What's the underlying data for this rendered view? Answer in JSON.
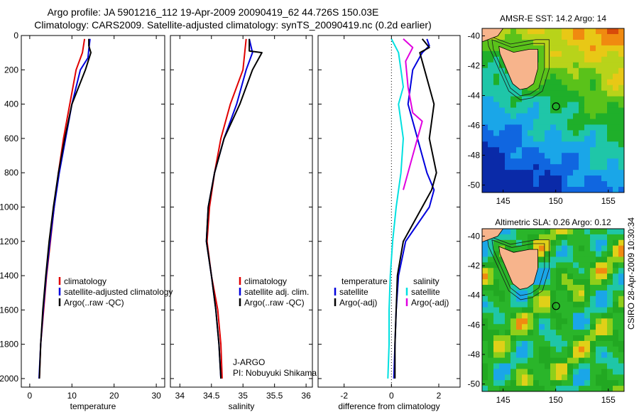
{
  "figure": {
    "title_line1": "Argo profile: JA 5901216_112 19-Apr-2009 20090419_62 44.726S 150.03E",
    "title_line2": "Climatology: CARS2009. Satellite-adjusted climatology: synTS_20090419.nc (0.2d earlier)",
    "footer_note": "CSIRO 28-Apr-2009 10:30:34"
  },
  "chart_data": [
    {
      "type": "line",
      "xlabel": "temperature",
      "xlim": [
        -2,
        32
      ],
      "ylim": [
        0,
        2050
      ],
      "y_reversed": true,
      "xticks": [
        "0",
        "10",
        "20",
        "30"
      ],
      "yticks": [
        "0",
        "200",
        "400",
        "600",
        "800",
        "1000",
        "1200",
        "1400",
        "1600",
        "1800",
        "2000"
      ],
      "legend": [
        "climatology",
        "satellite-adjusted climatology",
        "Argo(..raw -QC)"
      ],
      "series": [
        {
          "name": "climatology",
          "color": "#e00000",
          "points": [
            [
              13,
              20
            ],
            [
              12.5,
              100
            ],
            [
              11,
              200
            ],
            [
              9.5,
              400
            ],
            [
              8,
              600
            ],
            [
              6.8,
              800
            ],
            [
              5.8,
              1000
            ],
            [
              4.9,
              1200
            ],
            [
              4,
              1400
            ],
            [
              3.3,
              1600
            ],
            [
              2.6,
              1800
            ],
            [
              2.3,
              2000
            ]
          ]
        },
        {
          "name": "satellite-adjusted climatology",
          "color": "#0000dd",
          "points": [
            [
              14.3,
              20
            ],
            [
              14,
              80
            ],
            [
              13.8,
              130
            ],
            [
              12,
              200
            ],
            [
              10,
              400
            ],
            [
              8.5,
              600
            ],
            [
              7,
              800
            ],
            [
              5.8,
              1000
            ],
            [
              4.8,
              1200
            ],
            [
              3.9,
              1400
            ],
            [
              3.2,
              1600
            ],
            [
              2.6,
              1800
            ],
            [
              2.2,
              2000
            ]
          ]
        },
        {
          "name": "Argo(..raw -QC)",
          "color": "#000000",
          "points": [
            [
              14,
              20
            ],
            [
              14,
              60
            ],
            [
              14.5,
              100
            ],
            [
              13.2,
              200
            ],
            [
              10,
              400
            ],
            [
              8.3,
              600
            ],
            [
              6.8,
              800
            ],
            [
              5.6,
              1000
            ],
            [
              4.6,
              1200
            ],
            [
              3.8,
              1400
            ],
            [
              3.1,
              1600
            ],
            [
              2.6,
              1800
            ],
            [
              2.3,
              2000
            ]
          ]
        }
      ]
    },
    {
      "type": "line",
      "xlabel": "salinity",
      "xlim": [
        33.85,
        36.1
      ],
      "ylim": [
        0,
        2050
      ],
      "y_reversed": true,
      "xticks": [
        "34",
        "34.5",
        "35",
        "35.5",
        "36"
      ],
      "legend": [
        "climatology",
        "satellite adj. clim.",
        "Argo(..raw -QC)"
      ],
      "annotation_lines": [
        "J-ARGO",
        "PI: Nobuyuki Shikama"
      ],
      "series": [
        {
          "name": "climatology",
          "color": "#e00000",
          "points": [
            [
              35.05,
              20
            ],
            [
              35.0,
              200
            ],
            [
              34.8,
              400
            ],
            [
              34.65,
              600
            ],
            [
              34.55,
              800
            ],
            [
              34.47,
              1000
            ],
            [
              34.43,
              1200
            ],
            [
              34.5,
              1400
            ],
            [
              34.6,
              1600
            ],
            [
              34.65,
              1800
            ],
            [
              34.67,
              2000
            ]
          ]
        },
        {
          "name": "satellite adj. clim.",
          "color": "#0000dd",
          "points": [
            [
              35.1,
              20
            ],
            [
              35.15,
              100
            ],
            [
              35.05,
              200
            ],
            [
              34.9,
              400
            ],
            [
              34.7,
              600
            ],
            [
              34.55,
              800
            ],
            [
              34.45,
              1000
            ],
            [
              34.42,
              1200
            ],
            [
              34.5,
              1400
            ],
            [
              34.57,
              1600
            ],
            [
              34.62,
              1800
            ],
            [
              34.65,
              2000
            ]
          ]
        },
        {
          "name": "Argo(..raw -QC)",
          "color": "#000000",
          "points": [
            [
              35.1,
              20
            ],
            [
              35.1,
              90
            ],
            [
              35.3,
              100
            ],
            [
              35.15,
              200
            ],
            [
              34.95,
              400
            ],
            [
              34.7,
              600
            ],
            [
              34.55,
              800
            ],
            [
              34.45,
              1000
            ],
            [
              34.42,
              1200
            ],
            [
              34.5,
              1400
            ],
            [
              34.57,
              1600
            ],
            [
              34.62,
              1800
            ],
            [
              34.65,
              2000
            ]
          ]
        }
      ]
    },
    {
      "type": "line",
      "xlabel": "difference from climatology",
      "xlim": [
        -3.1,
        2.9
      ],
      "ylim": [
        0,
        2050
      ],
      "y_reversed": true,
      "xticks": [
        "-2",
        "0",
        "2"
      ],
      "legend_left_header": "temperature",
      "legend_right_header": "salinity",
      "legend": [
        "satellite",
        "Argo(-adj)",
        "satellite",
        "Argo(-adj)"
      ],
      "series": [
        {
          "name": "satellite",
          "color": "#0000dd",
          "points": [
            [
              1.5,
              20
            ],
            [
              1.6,
              60
            ],
            [
              1.3,
              100
            ],
            [
              0.9,
              200
            ],
            [
              0.7,
              400
            ],
            [
              1.1,
              600
            ],
            [
              1.5,
              800
            ],
            [
              1.8,
              900
            ],
            [
              1.6,
              1000
            ],
            [
              0.6,
              1200
            ],
            [
              0.3,
              1400
            ],
            [
              0.2,
              1600
            ],
            [
              0.15,
              1800
            ],
            [
              0.1,
              2000
            ]
          ]
        },
        {
          "name": "Argo(-adj)",
          "color": "#000000",
          "points": [
            [
              1.3,
              20
            ],
            [
              1.6,
              70
            ],
            [
              1.2,
              100
            ],
            [
              1.4,
              200
            ],
            [
              1.8,
              400
            ],
            [
              1.6,
              600
            ],
            [
              1.9,
              800
            ],
            [
              1.7,
              900
            ],
            [
              1.3,
              1000
            ],
            [
              0.5,
              1200
            ],
            [
              0.25,
              1400
            ],
            [
              0.2,
              1600
            ],
            [
              0.15,
              1800
            ],
            [
              0.15,
              2000
            ]
          ]
        },
        {
          "name": "satellite",
          "color": "#00e0e0",
          "points": [
            [
              0,
              20
            ],
            [
              0.3,
              100
            ],
            [
              0.4,
              200
            ],
            [
              0.5,
              300
            ],
            [
              0.3,
              400
            ],
            [
              0.5,
              600
            ],
            [
              0.4,
              800
            ],
            [
              0.2,
              1000
            ],
            [
              0.05,
              1200
            ],
            [
              -0.05,
              1400
            ],
            [
              -0.1,
              1600
            ],
            [
              -0.1,
              1800
            ],
            [
              -0.15,
              2000
            ]
          ]
        },
        {
          "name": "Argo(-adj)",
          "color": "#e000e0",
          "points": [
            [
              0.5,
              20
            ],
            [
              0.9,
              70
            ],
            [
              0.6,
              150
            ],
            [
              0.7,
              300
            ],
            [
              0.9,
              450
            ],
            [
              1.3,
              500
            ],
            [
              0.9,
              700
            ],
            [
              0.5,
              900
            ]
          ]
        }
      ]
    }
  ],
  "maps": [
    {
      "title": "AMSR-E SST: 14.2 Argo: 14",
      "xticks": [
        "145",
        "150",
        "155"
      ],
      "yticks": [
        "-40",
        "-42",
        "-44",
        "-46",
        "-48",
        "-50"
      ],
      "kind": "sst"
    },
    {
      "title": "Altimetric SLA: 0.26 Argo: 0.12",
      "xticks": [
        "145",
        "150",
        "155"
      ],
      "yticks": [
        "-40",
        "-42",
        "-44",
        "-46",
        "-48",
        "-50"
      ],
      "kind": "sla"
    }
  ]
}
